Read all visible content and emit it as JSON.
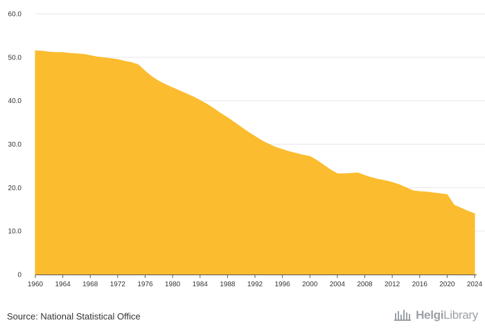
{
  "chart_data": {
    "type": "area",
    "title": "",
    "xlabel": "",
    "ylabel": "",
    "xlim": [
      1960,
      2024
    ],
    "ylim": [
      0,
      60
    ],
    "grid": true,
    "legend": "none",
    "color": "#FBBC2F",
    "x": [
      1960,
      1961,
      1962,
      1963,
      1964,
      1965,
      1966,
      1967,
      1968,
      1969,
      1970,
      1971,
      1972,
      1973,
      1974,
      1975,
      1976,
      1977,
      1978,
      1979,
      1980,
      1981,
      1982,
      1983,
      1984,
      1985,
      1986,
      1987,
      1988,
      1989,
      1990,
      1991,
      1992,
      1993,
      1994,
      1995,
      1996,
      1997,
      1998,
      1999,
      2000,
      2001,
      2002,
      2003,
      2004,
      2005,
      2006,
      2007,
      2008,
      2009,
      2010,
      2011,
      2012,
      2013,
      2014,
      2015,
      2016,
      2017,
      2018,
      2019,
      2020,
      2021,
      2022,
      2023,
      2024
    ],
    "values": [
      51.5,
      51.4,
      51.2,
      51.1,
      51.1,
      50.9,
      50.8,
      50.7,
      50.4,
      50.1,
      49.9,
      49.7,
      49.5,
      49.1,
      48.8,
      48.3,
      46.8,
      45.5,
      44.5,
      43.7,
      43.0,
      42.3,
      41.6,
      40.9,
      40.1,
      39.2,
      38.2,
      37.1,
      36.1,
      35.0,
      33.9,
      32.8,
      31.8,
      30.8,
      30.0,
      29.3,
      28.8,
      28.3,
      27.9,
      27.5,
      27.2,
      26.3,
      25.2,
      24.1,
      23.2,
      23.2,
      23.3,
      23.4,
      22.8,
      22.3,
      21.9,
      21.6,
      21.2,
      20.7,
      20.0,
      19.3,
      19.1,
      19.0,
      18.8,
      18.6,
      18.4,
      16.0,
      15.3,
      14.6,
      14.0
    ],
    "y_ticks": [
      "0",
      "10.0",
      "20.0",
      "30.0",
      "40.0",
      "50.0",
      "60.0"
    ],
    "x_ticks": [
      "1960",
      "1964",
      "1968",
      "1972",
      "1976",
      "1980",
      "1984",
      "1988",
      "1992",
      "1996",
      "2000",
      "2004",
      "2008",
      "2012",
      "2016",
      "2020",
      "2024"
    ]
  },
  "footer": {
    "source": "Source: National Statistical Office",
    "brand_a": "Helgi",
    "brand_b": "Library"
  },
  "icons": {
    "brand": "helgi-library-logo-icon"
  }
}
